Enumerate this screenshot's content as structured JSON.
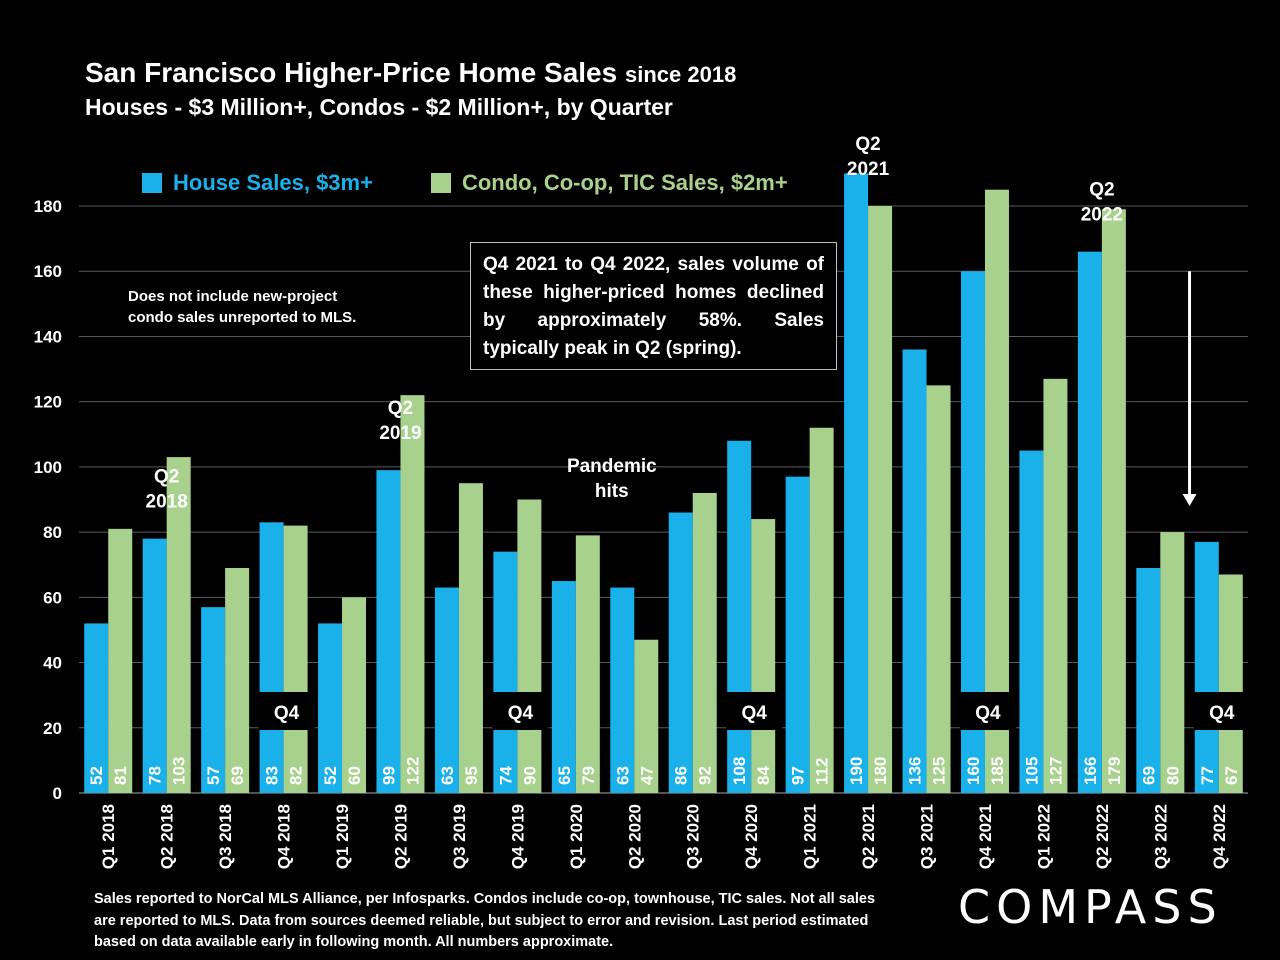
{
  "title": {
    "main": "San Francisco Higher-Price Home Sales",
    "since": "since 2018",
    "subtitle": "Houses - $3 Million+, Condos - $2 Million+, by Quarter"
  },
  "legend": {
    "house": "House Sales, $3m+",
    "condo": "Condo, Co-op, TIC Sales, $2m+"
  },
  "note_left": "Does not include new-project condo sales unreported to MLS.",
  "callout": "Q4 2021 to Q4 2022, sales volume of these higher-priced homes declined by approximately 58%. Sales typically peak in Q2 (spring).",
  "footer": "Sales reported to NorCal MLS Alliance, per Infosparks. Condos include co-op, townhouse, TIC sales. Not all sales are reported to MLS. Data from sources deemed reliable, but subject to error and revision. Last period estimated based on data available early in following month. All numbers  approximate.",
  "logo": "COMPASS",
  "colors": {
    "house": "#1ab0ea",
    "condo": "#a9d18e",
    "grid": "#5a5a5a",
    "background": "#000000"
  },
  "chart_data": {
    "type": "bar",
    "title": "San Francisco Higher-Price Home Sales since 2018",
    "xlabel": "",
    "ylabel": "",
    "ylim": [
      0,
      180
    ],
    "yticks": [
      0,
      20,
      40,
      60,
      80,
      100,
      120,
      140,
      160,
      180
    ],
    "categories": [
      "Q1 2018",
      "Q2 2018",
      "Q3 2018",
      "Q4 2018",
      "Q1 2019",
      "Q2 2019",
      "Q3 2019",
      "Q4 2019",
      "Q1 2020",
      "Q2 2020",
      "Q3 2020",
      "Q4 2020",
      "Q1 2021",
      "Q2 2021",
      "Q3 2021",
      "Q4 2021",
      "Q1 2022",
      "Q2 2022",
      "Q3 2022",
      "Q4 2022"
    ],
    "series": [
      {
        "name": "House Sales, $3m+",
        "values": [
          52,
          78,
          57,
          83,
          52,
          99,
          63,
          74,
          65,
          63,
          86,
          108,
          97,
          190,
          136,
          160,
          105,
          166,
          69,
          77
        ]
      },
      {
        "name": "Condo, Co-op, TIC Sales, $2m+",
        "values": [
          81,
          103,
          69,
          82,
          60,
          122,
          95,
          90,
          79,
          47,
          92,
          84,
          112,
          180,
          125,
          185,
          127,
          179,
          80,
          67
        ]
      }
    ],
    "annotations": [
      {
        "category": "Q2 2018",
        "lines": [
          "Q2",
          "2018"
        ]
      },
      {
        "category": "Q2 2019",
        "lines": [
          "Q2",
          "2019"
        ]
      },
      {
        "category": "Q2 2021",
        "lines": [
          "Q2",
          "2021"
        ]
      },
      {
        "category": "Q2 2022",
        "lines": [
          "Q2",
          "2022"
        ]
      },
      {
        "category": "Q1 2020",
        "lines": [
          "Pandemic",
          "hits"
        ]
      }
    ],
    "q4_label": "Q4",
    "q4_categories": [
      "Q4 2018",
      "Q4 2019",
      "Q4 2020",
      "Q4 2021",
      "Q4 2022"
    ],
    "arrow": {
      "from": 160,
      "to": 88,
      "between": [
        "Q3 2022",
        "Q4 2022"
      ]
    }
  }
}
